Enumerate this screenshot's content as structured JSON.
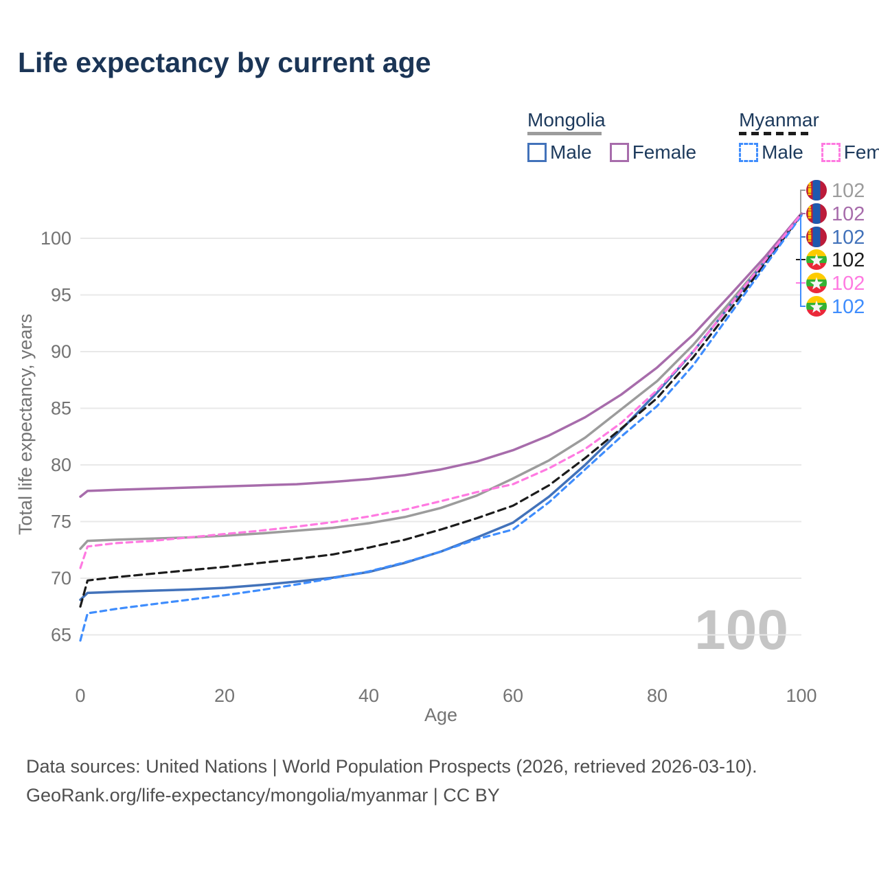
{
  "page": {
    "title": "Life expectancy by current age"
  },
  "legend": {
    "groups": [
      {
        "name": "Mongolia",
        "line_style": "solid",
        "line_color": "#9c9c9c",
        "items": [
          {
            "label": "Male",
            "color": "#4272ba"
          },
          {
            "label": "Female",
            "color": "#a76cab"
          }
        ]
      },
      {
        "name": "Myanmar",
        "line_style": "dashed",
        "line_color": "#1c1c1c",
        "items": [
          {
            "label": "Male",
            "color": "#3f8dfd"
          },
          {
            "label": "Female",
            "color": "#ff7ae1"
          }
        ]
      }
    ]
  },
  "chart_data": {
    "type": "line",
    "title": "Life expectancy by current age",
    "xlabel": "Age",
    "ylabel": "Total life expectancy, years",
    "x_ticks": [
      0,
      20,
      40,
      60,
      80,
      100
    ],
    "y_ticks": [
      65,
      70,
      75,
      80,
      85,
      90,
      95,
      100
    ],
    "xlim": [
      0,
      100
    ],
    "ylim": [
      63.5,
      103.5
    ],
    "grid": true,
    "legend_position": "top-right",
    "age_watermark": "100",
    "x": [
      0,
      1,
      3,
      5,
      10,
      15,
      20,
      25,
      30,
      35,
      40,
      45,
      50,
      55,
      60,
      65,
      70,
      75,
      80,
      85,
      90,
      95,
      100
    ],
    "series": [
      {
        "id": "mongolia-total",
        "country": "Mongolia",
        "group": "All",
        "color": "#9c9c9c",
        "dashed": false,
        "flag": "mongolia-flag-icon",
        "end_label": "102",
        "values": [
          72.6,
          73.3,
          73.35,
          73.4,
          73.5,
          73.6,
          73.75,
          73.95,
          74.2,
          74.45,
          74.85,
          75.4,
          76.2,
          77.3,
          78.8,
          80.4,
          82.4,
          84.9,
          87.4,
          90.6,
          94.3,
          98.1,
          102.1
        ]
      },
      {
        "id": "mongolia-female",
        "country": "Mongolia",
        "group": "Female",
        "color": "#a76cab",
        "dashed": false,
        "flag": "mongolia-flag-icon",
        "end_label": "102",
        "values": [
          77.2,
          77.7,
          77.75,
          77.8,
          77.9,
          78.0,
          78.1,
          78.2,
          78.3,
          78.5,
          78.75,
          79.1,
          79.6,
          80.3,
          81.3,
          82.6,
          84.2,
          86.2,
          88.6,
          91.5,
          94.9,
          98.4,
          102.2
        ]
      },
      {
        "id": "mongolia-male",
        "country": "Mongolia",
        "group": "Male",
        "color": "#4272ba",
        "dashed": false,
        "flag": "mongolia-flag-icon",
        "end_label": "102",
        "values": [
          68.1,
          68.7,
          68.75,
          68.8,
          68.9,
          69.0,
          69.15,
          69.4,
          69.7,
          70.05,
          70.55,
          71.35,
          72.35,
          73.6,
          74.9,
          77.2,
          80.0,
          83.1,
          86.4,
          90.0,
          94.0,
          98.0,
          102.1
        ]
      },
      {
        "id": "myanmar-total",
        "country": "Myanmar",
        "group": "All",
        "color": "#1c1c1c",
        "dashed": true,
        "flag": "myanmar-flag-icon",
        "end_label": "102",
        "values": [
          67.5,
          69.8,
          69.95,
          70.1,
          70.4,
          70.7,
          71.0,
          71.35,
          71.7,
          72.1,
          72.7,
          73.4,
          74.3,
          75.3,
          76.4,
          78.2,
          80.6,
          83.2,
          85.9,
          89.5,
          93.6,
          97.8,
          102.1
        ]
      },
      {
        "id": "myanmar-female",
        "country": "Myanmar",
        "group": "Female",
        "color": "#ff7ae1",
        "dashed": true,
        "flag": "myanmar-flag-icon",
        "end_label": "102",
        "values": [
          70.9,
          72.8,
          72.95,
          73.1,
          73.3,
          73.6,
          73.9,
          74.2,
          74.55,
          74.95,
          75.45,
          76.05,
          76.8,
          77.6,
          78.3,
          79.7,
          81.4,
          83.7,
          86.6,
          90.0,
          94.0,
          98.1,
          102.15
        ]
      },
      {
        "id": "myanmar-male",
        "country": "Myanmar",
        "group": "Male",
        "color": "#3f8dfd",
        "dashed": true,
        "flag": "myanmar-flag-icon",
        "end_label": "102",
        "values": [
          64.5,
          66.9,
          67.1,
          67.3,
          67.7,
          68.1,
          68.5,
          68.95,
          69.45,
          70.0,
          70.6,
          71.4,
          72.35,
          73.45,
          74.3,
          76.7,
          79.6,
          82.5,
          85.2,
          88.8,
          93.2,
          97.6,
          102.0
        ]
      }
    ],
    "colors": {
      "grid": "#e8e8e8",
      "axis_text": "#737373",
      "watermark": "#c5c5c5",
      "title_text": "#1b3556"
    }
  },
  "footer": {
    "line1": "Data sources: United Nations | World Population Prospects (2026, retrieved 2026-03-10).",
    "line2": "GeoRank.org/life-expectancy/mongolia/myanmar | CC BY"
  }
}
